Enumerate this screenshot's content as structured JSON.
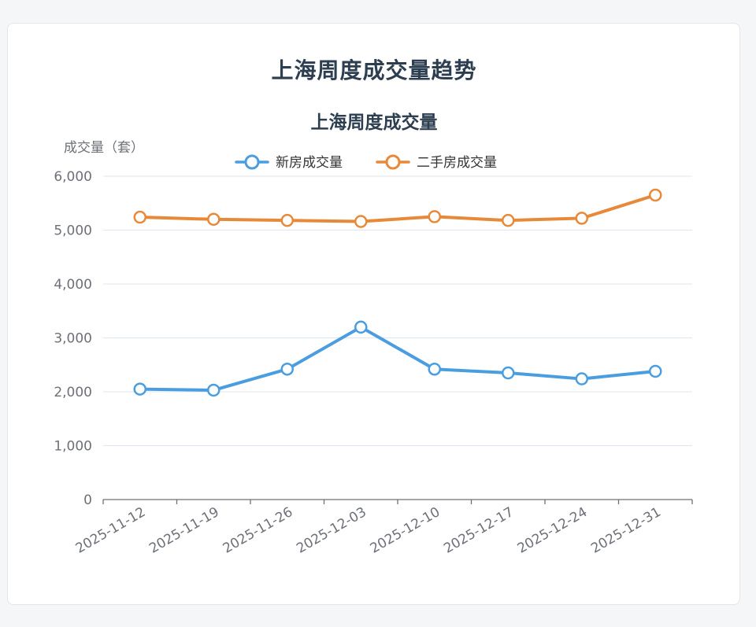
{
  "page": {
    "heading": "上海周度成交量趋势"
  },
  "chart_data": {
    "type": "line",
    "title": "上海周度成交量",
    "ylabel": "成交量（套）",
    "xlabel": "",
    "categories": [
      "2025-11-12",
      "2025-11-19",
      "2025-11-26",
      "2025-12-03",
      "2025-12-10",
      "2025-12-17",
      "2025-12-24",
      "2025-12-31"
    ],
    "ylim": [
      0,
      6000
    ],
    "yticks": [
      0,
      1000,
      2000,
      3000,
      4000,
      5000,
      6000
    ],
    "ytick_labels": [
      "0",
      "1,000",
      "2,000",
      "3,000",
      "4,000",
      "5,000",
      "6,000"
    ],
    "grid": true,
    "legend_position": "top-center",
    "series": [
      {
        "name": "新房成交量",
        "color": "#4a9ee0",
        "values": [
          2050,
          2030,
          2420,
          3200,
          2420,
          2350,
          2240,
          2380
        ]
      },
      {
        "name": "二手房成交量",
        "color": "#e8893a",
        "values": [
          5240,
          5200,
          5180,
          5160,
          5250,
          5180,
          5220,
          5650
        ]
      }
    ]
  }
}
